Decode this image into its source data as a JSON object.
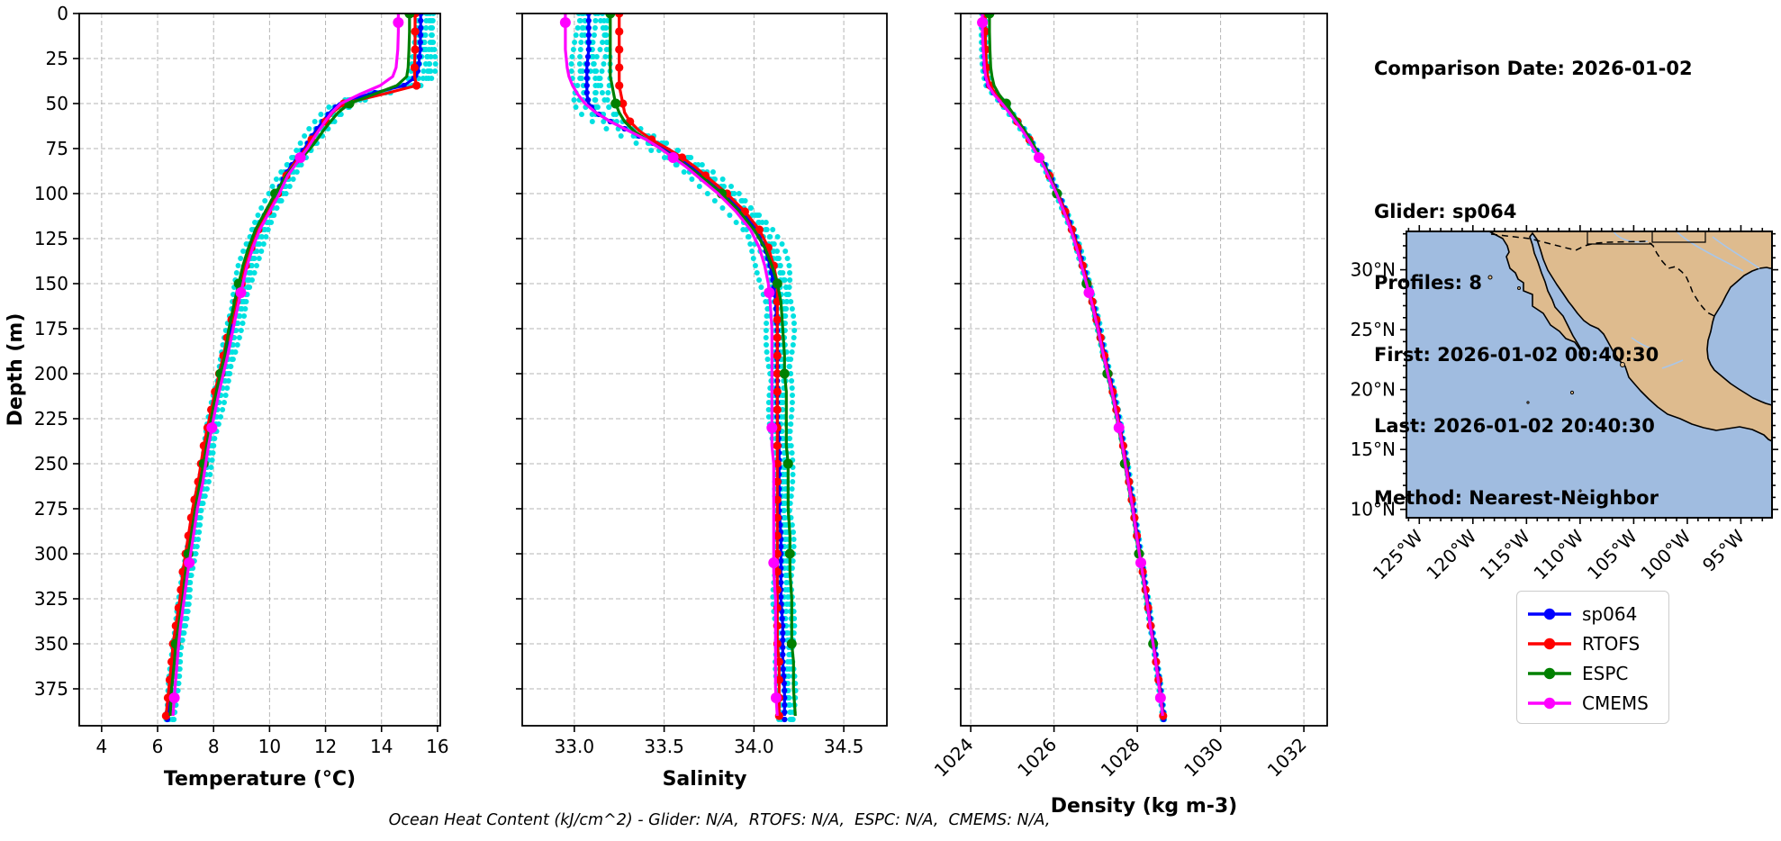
{
  "info": {
    "comparison_date": "Comparison Date: 2026-01-02",
    "glider": "Glider: sp064",
    "profiles": "Profiles: 8",
    "first": "First: 2026-01-02 00:40:30",
    "last": "Last: 2026-01-02 20:40:30",
    "method": "Method: Nearest-Neighbor"
  },
  "footer": "Ocean Heat Content (kJ/cm^2) - Glider: N/A,  RTOFS: N/A,  ESPC: N/A,  CMEMS: N/A,",
  "legend": {
    "entries": [
      {
        "label": "sp064",
        "color": "#0000ff"
      },
      {
        "label": "RTOFS",
        "color": "#ff0000"
      },
      {
        "label": "ESPC",
        "color": "#008000"
      },
      {
        "label": "CMEMS",
        "color": "#ff00ff"
      }
    ]
  },
  "map": {
    "ocean_color": "#a0bce0",
    "land_color": "#debb8e",
    "river_color": "#a9c6e8",
    "lat_tick_values": [
      30,
      25,
      20,
      15,
      10
    ],
    "lat_tick_labels": [
      "30°N",
      "25°N",
      "20°N",
      "15°N",
      "10°N"
    ],
    "lon_tick_values": [
      125,
      120,
      115,
      110,
      105,
      100,
      95
    ],
    "lon_tick_labels": [
      "125°W",
      "120°W",
      "115°W",
      "110°W",
      "105°W",
      "100°W",
      "95°W"
    ],
    "lat_range": [
      33.2,
      9.3
    ],
    "lon_range": [
      126.2,
      92.1
    ]
  },
  "chart_data": [
    {
      "type": "line",
      "xlabel": "Temperature (°C)",
      "ylabel": "Depth (m)",
      "xlim": [
        3.2,
        16.1
      ],
      "ylim": [
        0,
        395.5
      ],
      "xticks": [
        4,
        6,
        8,
        10,
        12,
        14,
        16
      ],
      "xtick_labels": [
        "4",
        "6",
        "8",
        "10",
        "12",
        "14",
        "16"
      ],
      "yticks": [
        0,
        25,
        50,
        75,
        100,
        125,
        150,
        175,
        200,
        225,
        250,
        275,
        300,
        325,
        350,
        375
      ],
      "grid": true,
      "legend_position": "outside-right-bottom",
      "depths": [
        0,
        10,
        20,
        30,
        35,
        40,
        45,
        50,
        55,
        60,
        65,
        70,
        75,
        80,
        85,
        90,
        95,
        100,
        110,
        120,
        130,
        140,
        150,
        160,
        175,
        190,
        200,
        210,
        225,
        240,
        250,
        260,
        275,
        290,
        300,
        310,
        325,
        340,
        350,
        360,
        375,
        390
      ],
      "scatter": {
        "name": "glider raw profiles",
        "color": "#00e0e0",
        "spread": 0.42,
        "profiles": 8
      },
      "series": [
        {
          "name": "sp064",
          "color": "#0000ff",
          "marker_every_m": 4,
          "marker_r": 3.1,
          "values": [
            15.4,
            15.4,
            15.38,
            15.32,
            15.25,
            14.8,
            13.5,
            12.5,
            12.15,
            11.9,
            11.65,
            11.45,
            11.25,
            11.0,
            10.75,
            10.55,
            10.4,
            10.25,
            9.9,
            9.55,
            9.3,
            9.1,
            8.95,
            8.8,
            8.6,
            8.4,
            8.25,
            8.1,
            7.9,
            7.7,
            7.6,
            7.5,
            7.3,
            7.15,
            7.05,
            6.95,
            6.85,
            6.7,
            6.6,
            6.55,
            6.45,
            6.35
          ]
        },
        {
          "name": "RTOFS",
          "color": "#ff0000",
          "marker_every_m": 10,
          "marker_r": 4.6,
          "values": [
            15.2,
            15.2,
            15.2,
            15.18,
            15.18,
            15.25,
            14.0,
            12.65,
            12.25,
            12.0,
            11.75,
            11.5,
            11.3,
            11.05,
            10.8,
            10.6,
            10.45,
            10.3,
            9.95,
            9.6,
            9.35,
            9.15,
            9.0,
            8.82,
            8.55,
            8.35,
            8.2,
            8.05,
            7.85,
            7.65,
            7.55,
            7.45,
            7.25,
            7.1,
            7.0,
            6.9,
            6.8,
            6.65,
            6.55,
            6.5,
            6.4,
            6.3
          ]
        },
        {
          "name": "ESPC",
          "color": "#008000",
          "marker_every_m": 50,
          "marker_r": 5.5,
          "values": [
            15.0,
            15.0,
            14.98,
            14.95,
            14.9,
            14.55,
            13.7,
            12.85,
            12.45,
            12.18,
            11.92,
            11.7,
            11.45,
            11.15,
            10.85,
            10.6,
            10.4,
            10.2,
            9.85,
            9.5,
            9.25,
            9.05,
            8.9,
            8.75,
            8.55,
            8.4,
            8.25,
            8.1,
            7.92,
            7.75,
            7.65,
            7.52,
            7.35,
            7.2,
            7.1,
            7.0,
            6.9,
            6.75,
            6.65,
            6.6,
            6.5,
            6.45
          ]
        },
        {
          "name": "CMEMS",
          "color": "#ff00ff",
          "marker_every_m": 75,
          "marker_offset_m": 5,
          "marker_r": 6.0,
          "values": [
            14.6,
            14.6,
            14.58,
            14.52,
            14.4,
            13.95,
            13.2,
            12.55,
            12.22,
            11.98,
            11.76,
            11.55,
            11.35,
            11.1,
            10.88,
            10.65,
            10.5,
            10.35,
            10.0,
            9.65,
            9.4,
            9.2,
            9.05,
            8.9,
            8.7,
            8.5,
            8.35,
            8.2,
            8.0,
            7.82,
            7.72,
            7.62,
            7.42,
            7.28,
            7.18,
            7.08,
            6.95,
            6.82,
            6.75,
            6.7,
            6.62,
            6.55
          ]
        }
      ]
    },
    {
      "type": "line",
      "xlabel": "Salinity",
      "xlim": [
        32.71,
        34.74
      ],
      "ylim": [
        0,
        395.5
      ],
      "xticks": [
        33.0,
        33.5,
        34.0,
        34.5
      ],
      "xtick_labels": [
        "33.0",
        "33.5",
        "34.0",
        "34.5"
      ],
      "yticks": [
        0,
        25,
        50,
        75,
        100,
        125,
        150,
        175,
        200,
        225,
        250,
        275,
        300,
        325,
        350,
        375
      ],
      "grid": true,
      "depths": [
        0,
        10,
        20,
        30,
        35,
        40,
        45,
        50,
        55,
        60,
        65,
        70,
        75,
        80,
        85,
        90,
        95,
        100,
        110,
        120,
        130,
        140,
        150,
        160,
        175,
        190,
        200,
        210,
        225,
        240,
        250,
        260,
        275,
        290,
        300,
        310,
        325,
        340,
        350,
        360,
        375,
        390
      ],
      "scatter": {
        "name": "glider raw profiles",
        "color": "#00e0e0",
        "spread": 0.12,
        "profiles": 8
      },
      "series": [
        {
          "name": "sp064",
          "color": "#0000ff",
          "marker_every_m": 4,
          "marker_r": 3.1,
          "values": [
            33.08,
            33.08,
            33.08,
            33.07,
            33.07,
            33.07,
            33.07,
            33.08,
            33.12,
            33.2,
            33.3,
            33.4,
            33.5,
            33.58,
            33.65,
            33.72,
            33.78,
            33.84,
            33.94,
            34.01,
            34.06,
            34.09,
            34.11,
            34.12,
            34.13,
            34.13,
            34.13,
            34.13,
            34.13,
            34.14,
            34.14,
            34.14,
            34.14,
            34.15,
            34.15,
            34.15,
            34.15,
            34.16,
            34.16,
            34.16,
            34.17,
            34.17
          ]
        },
        {
          "name": "RTOFS",
          "color": "#ff0000",
          "marker_every_m": 10,
          "marker_r": 4.6,
          "values": [
            33.25,
            33.25,
            33.25,
            33.25,
            33.25,
            33.25,
            33.26,
            33.27,
            33.28,
            33.31,
            33.36,
            33.43,
            33.52,
            33.6,
            33.67,
            33.73,
            33.79,
            33.85,
            33.95,
            34.03,
            34.08,
            34.11,
            34.13,
            34.13,
            34.13,
            34.13,
            34.13,
            34.13,
            34.13,
            34.13,
            34.13,
            34.13,
            34.13,
            34.13,
            34.13,
            34.13,
            34.13,
            34.13,
            34.13,
            34.14,
            34.14,
            34.14
          ]
        },
        {
          "name": "ESPC",
          "color": "#008000",
          "marker_every_m": 50,
          "marker_r": 5.5,
          "values": [
            33.2,
            33.2,
            33.2,
            33.2,
            33.2,
            33.21,
            33.22,
            33.23,
            33.25,
            33.28,
            33.33,
            33.4,
            33.48,
            33.56,
            33.63,
            33.7,
            33.76,
            33.82,
            33.92,
            34.0,
            34.06,
            34.1,
            34.13,
            34.15,
            34.16,
            34.17,
            34.17,
            34.18,
            34.18,
            34.18,
            34.19,
            34.19,
            34.19,
            34.2,
            34.2,
            34.2,
            34.21,
            34.21,
            34.21,
            34.22,
            34.22,
            34.23
          ]
        },
        {
          "name": "CMEMS",
          "color": "#ff00ff",
          "marker_every_m": 75,
          "marker_offset_m": 5,
          "marker_r": 6.0,
          "values": [
            32.95,
            32.95,
            32.95,
            32.96,
            32.97,
            32.99,
            33.02,
            33.06,
            33.12,
            33.2,
            33.3,
            33.4,
            33.48,
            33.55,
            33.62,
            33.68,
            33.74,
            33.8,
            33.9,
            33.98,
            34.03,
            34.06,
            34.08,
            34.09,
            34.1,
            34.1,
            34.1,
            34.1,
            34.1,
            34.1,
            34.11,
            34.11,
            34.11,
            34.11,
            34.11,
            34.11,
            34.12,
            34.12,
            34.12,
            34.12,
            34.12,
            34.13
          ]
        }
      ]
    },
    {
      "type": "line",
      "xlabel": "Density (kg m-3)",
      "xlim": [
        1023.76,
        1032.56
      ],
      "ylim": [
        0,
        395.5
      ],
      "xticks": [
        1024,
        1026,
        1028,
        1030,
        1032
      ],
      "xtick_labels": [
        "1024",
        "1026",
        "1028",
        "1030",
        "1032"
      ],
      "xtick_rotation": -45,
      "yticks": [
        0,
        25,
        50,
        75,
        100,
        125,
        150,
        175,
        200,
        225,
        250,
        275,
        300,
        325,
        350,
        375
      ],
      "grid": true,
      "depths": [
        0,
        10,
        20,
        30,
        35,
        40,
        45,
        50,
        55,
        60,
        65,
        70,
        75,
        80,
        85,
        90,
        95,
        100,
        110,
        120,
        130,
        140,
        150,
        160,
        175,
        190,
        200,
        210,
        225,
        240,
        250,
        260,
        275,
        290,
        300,
        310,
        325,
        340,
        350,
        360,
        375,
        390
      ],
      "scatter": {
        "name": "glider raw profiles",
        "color": "#00e0e0",
        "spread": 0.07,
        "profiles": 8
      },
      "series": [
        {
          "name": "sp064",
          "color": "#0000ff",
          "marker_every_m": 4,
          "marker_r": 3.1,
          "values": [
            1024.3,
            1024.3,
            1024.32,
            1024.34,
            1024.37,
            1024.42,
            1024.58,
            1024.78,
            1024.95,
            1025.12,
            1025.28,
            1025.42,
            1025.55,
            1025.68,
            1025.8,
            1025.9,
            1026.0,
            1026.1,
            1026.28,
            1026.44,
            1026.58,
            1026.7,
            1026.82,
            1026.93,
            1027.08,
            1027.22,
            1027.32,
            1027.42,
            1027.55,
            1027.67,
            1027.74,
            1027.81,
            1027.91,
            1028.0,
            1028.07,
            1028.14,
            1028.24,
            1028.33,
            1028.4,
            1028.46,
            1028.55,
            1028.63
          ]
        },
        {
          "name": "RTOFS",
          "color": "#ff0000",
          "marker_every_m": 10,
          "marker_r": 4.6,
          "values": [
            1024.35,
            1024.35,
            1024.36,
            1024.38,
            1024.41,
            1024.47,
            1024.6,
            1024.79,
            1024.96,
            1025.12,
            1025.27,
            1025.41,
            1025.54,
            1025.66,
            1025.78,
            1025.89,
            1025.99,
            1026.09,
            1026.27,
            1026.43,
            1026.57,
            1026.69,
            1026.81,
            1026.92,
            1027.07,
            1027.21,
            1027.31,
            1027.41,
            1027.54,
            1027.66,
            1027.73,
            1027.8,
            1027.9,
            1027.99,
            1028.06,
            1028.13,
            1028.23,
            1028.32,
            1028.39,
            1028.45,
            1028.54,
            1028.62
          ]
        },
        {
          "name": "ESPC",
          "color": "#008000",
          "marker_every_m": 50,
          "marker_r": 5.5,
          "values": [
            1024.45,
            1024.45,
            1024.46,
            1024.48,
            1024.51,
            1024.56,
            1024.68,
            1024.85,
            1025.0,
            1025.15,
            1025.3,
            1025.44,
            1025.56,
            1025.68,
            1025.79,
            1025.89,
            1025.98,
            1026.07,
            1026.24,
            1026.4,
            1026.54,
            1026.66,
            1026.78,
            1026.89,
            1027.04,
            1027.18,
            1027.28,
            1027.38,
            1027.51,
            1027.63,
            1027.7,
            1027.77,
            1027.88,
            1027.97,
            1028.04,
            1028.11,
            1028.21,
            1028.31,
            1028.38,
            1028.44,
            1028.53,
            1028.61
          ]
        },
        {
          "name": "CMEMS",
          "color": "#ff00ff",
          "marker_every_m": 75,
          "marker_offset_m": 5,
          "marker_r": 6.0,
          "values": [
            1024.28,
            1024.28,
            1024.3,
            1024.33,
            1024.36,
            1024.42,
            1024.56,
            1024.75,
            1024.92,
            1025.08,
            1025.24,
            1025.38,
            1025.51,
            1025.64,
            1025.76,
            1025.86,
            1025.96,
            1026.06,
            1026.24,
            1026.4,
            1026.54,
            1026.66,
            1026.78,
            1026.9,
            1027.05,
            1027.19,
            1027.29,
            1027.39,
            1027.52,
            1027.64,
            1027.71,
            1027.78,
            1027.89,
            1027.98,
            1028.05,
            1028.12,
            1028.22,
            1028.31,
            1028.38,
            1028.44,
            1028.53,
            1028.61
          ]
        }
      ]
    }
  ]
}
